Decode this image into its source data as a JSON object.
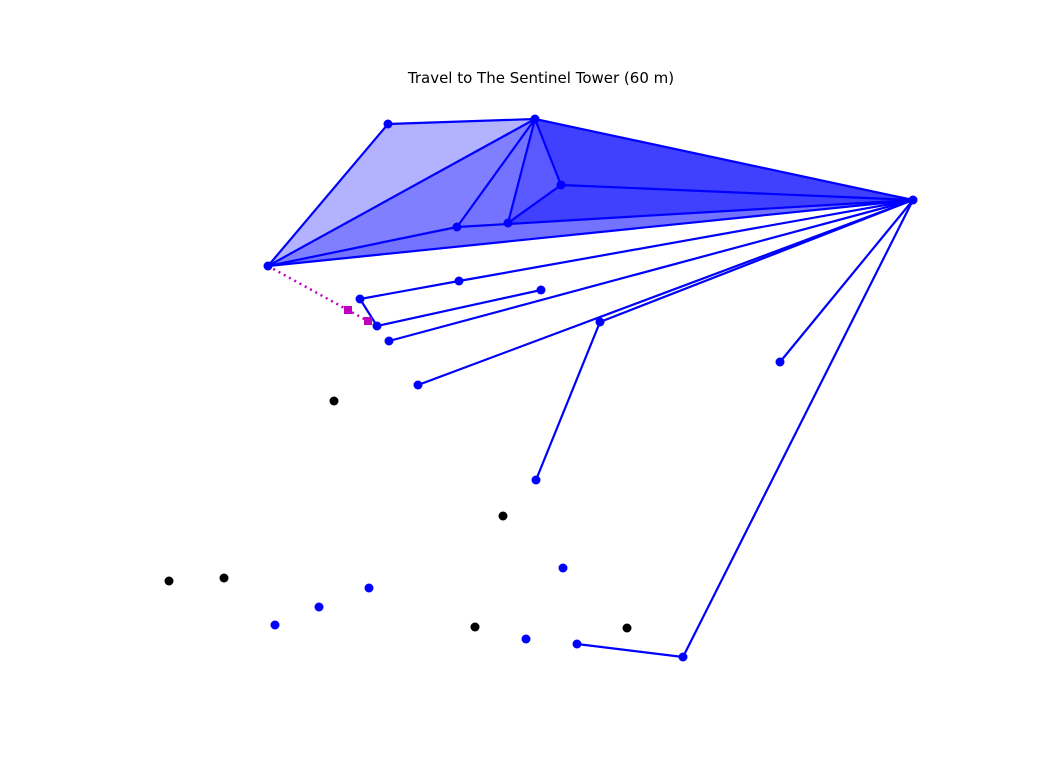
{
  "title": "Travel to The Sentinel Tower (60 m)",
  "colors": {
    "network": "#0000ff",
    "fill": "#0000ff",
    "unconnected": "#000000",
    "route": "#bf00bf",
    "background": "#ffffff"
  },
  "node_styles": {
    "connected": "network",
    "isolated_blue": "network",
    "isolated_black": "unconnected"
  }
}
